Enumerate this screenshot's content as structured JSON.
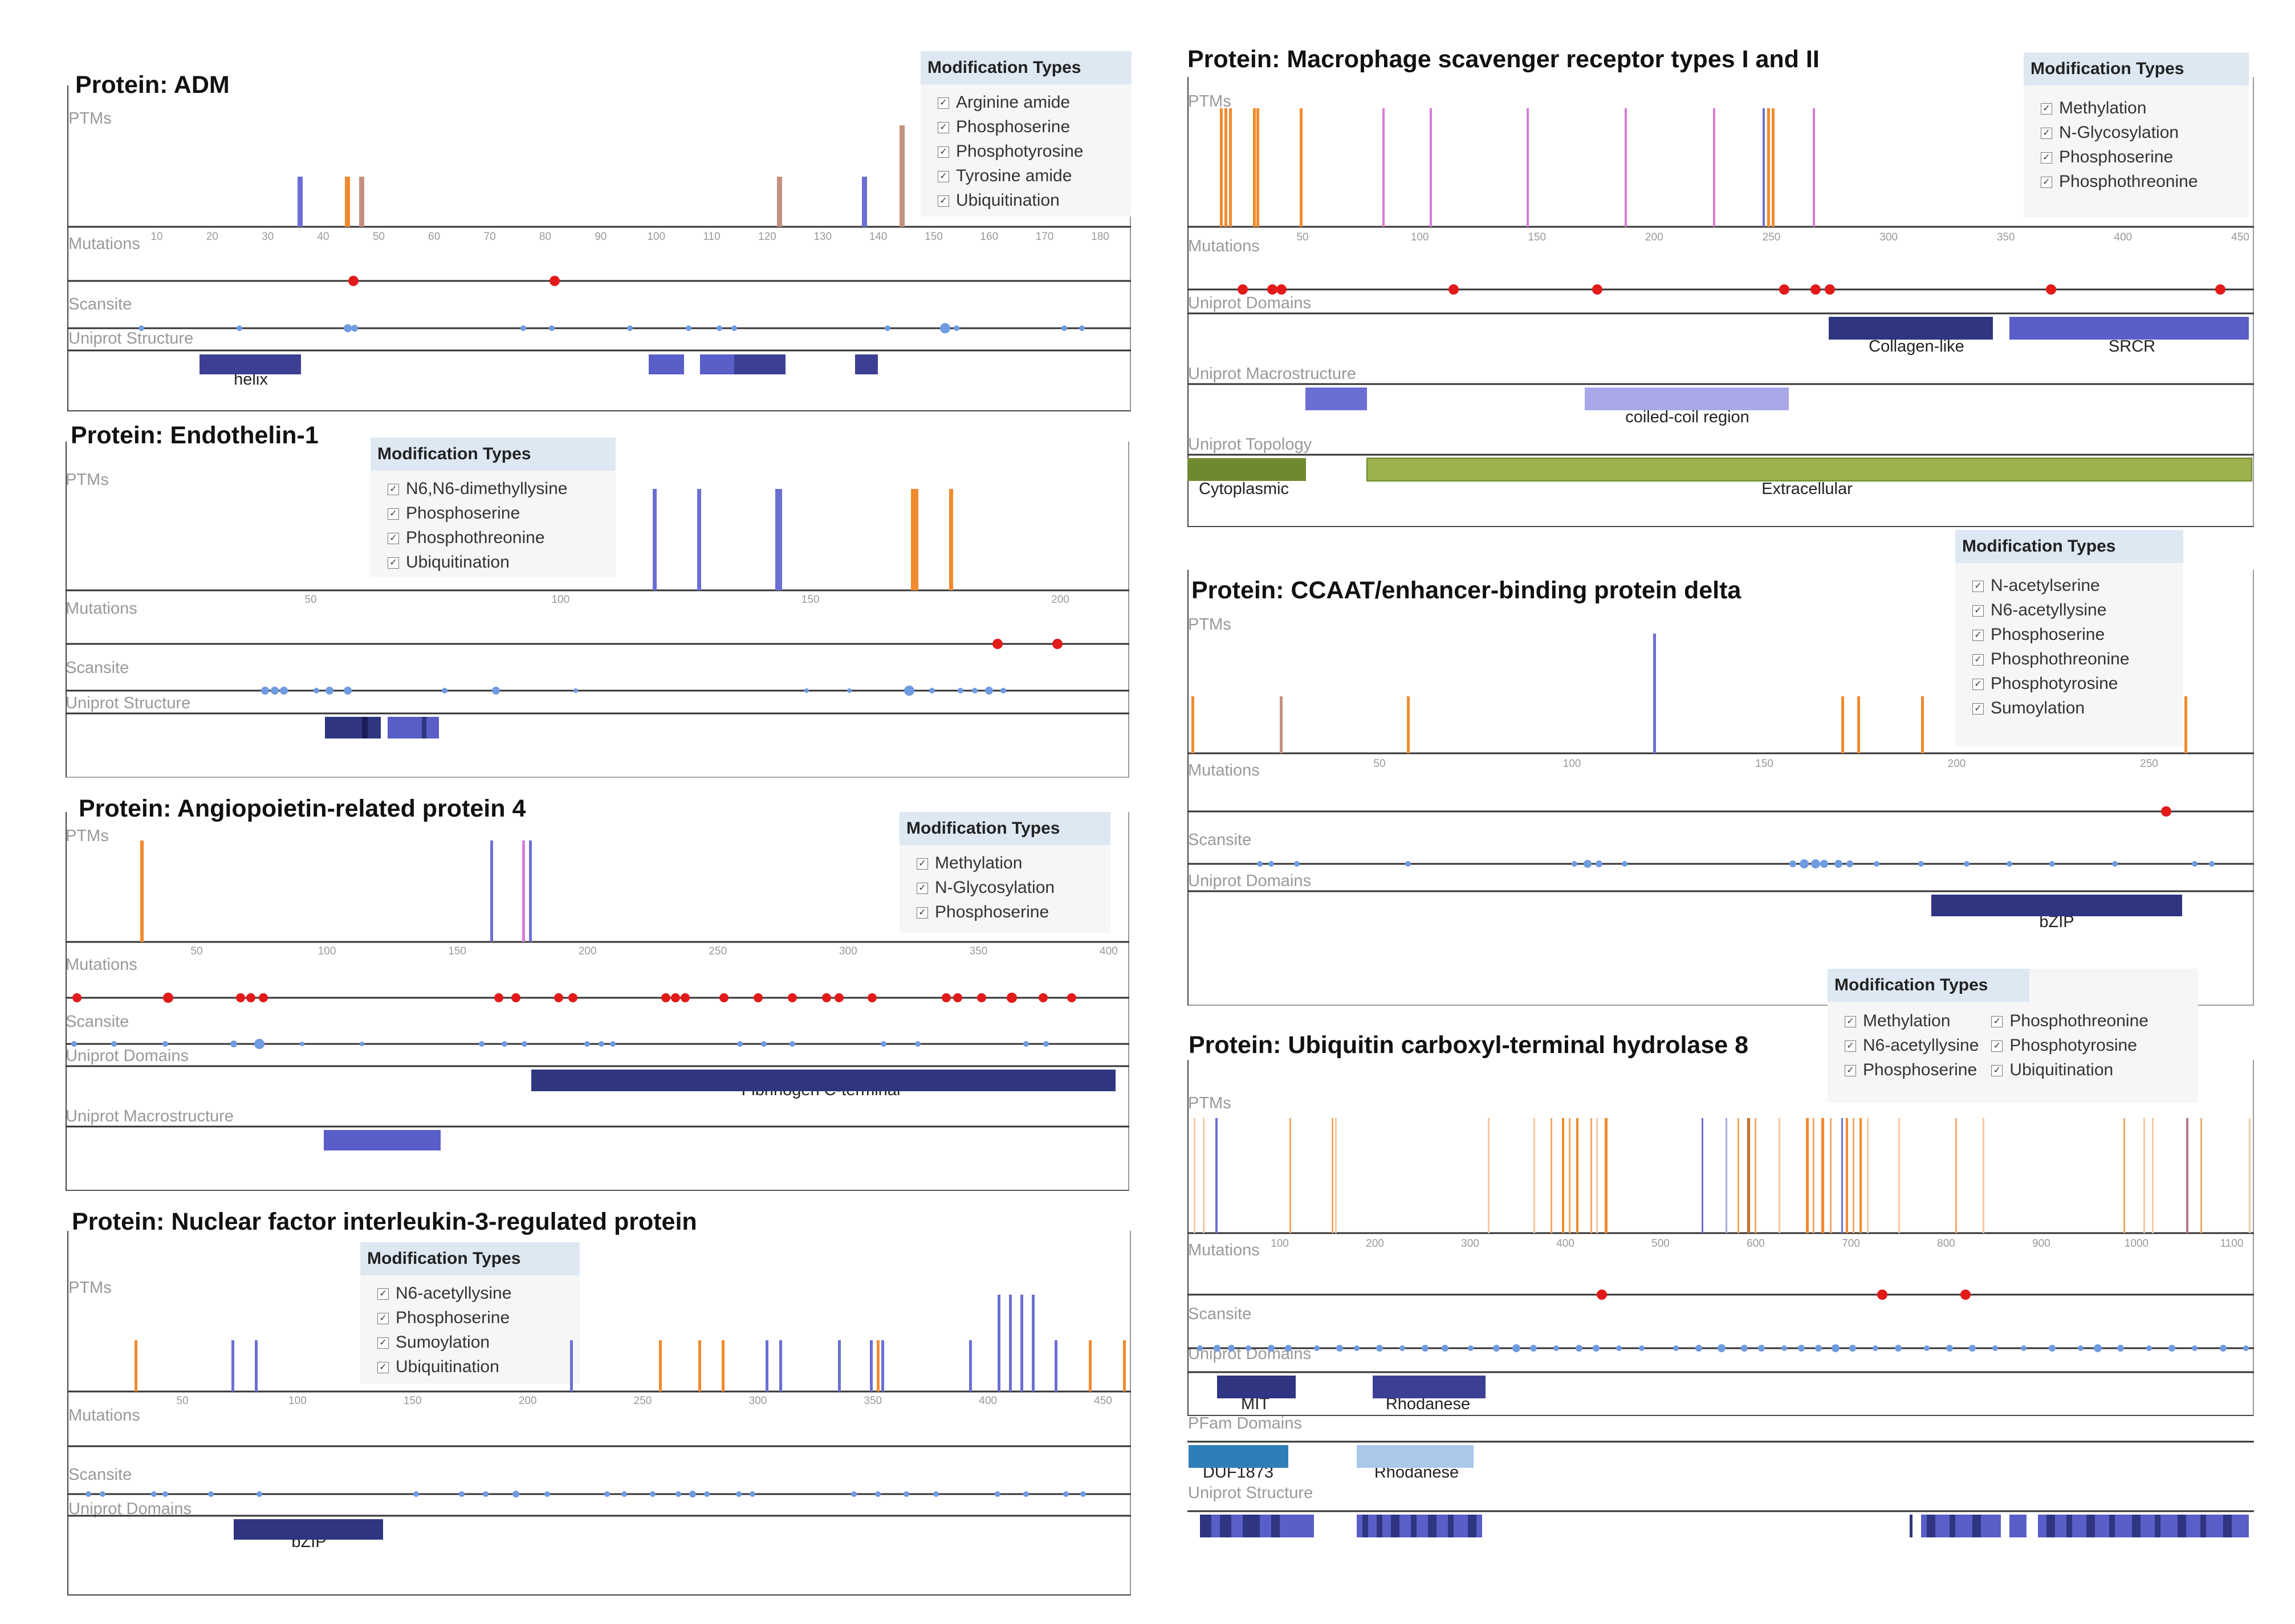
{
  "colors": {
    "orange": "#f28a2e",
    "blue": "#6b6fd4",
    "pink": "#d97ad6",
    "brown": "#c49080",
    "red": "#e21a1a",
    "scansite": "#6f9be0",
    "navy": "#2f3580",
    "domain_blue": "#5a5ec8",
    "lavender": "#a8a8e8",
    "olive": "#6e8a2f",
    "olive_light": "#9cb04e",
    "teal": "#2e7fb8",
    "light_blue": "#a9c8ea"
  },
  "track_labels": {
    "ptms": "PTMs",
    "mutations": "Mutations",
    "scansite": "Scansite",
    "uniprot_structure": "Uniprot Structure",
    "uniprot_domains": "Uniprot Domains",
    "uniprot_macrostructure": "Uniprot Macrostructure",
    "uniprot_topology": "Uniprot Topology",
    "pfam_domains": "PFam Domains"
  },
  "legend_title": "Modification Types",
  "check_mark": "✓",
  "proteins": {
    "adm": {
      "title": "Protein: ADM",
      "mods": [
        "Arginine amide",
        "Phosphoserine",
        "Phosphotyrosine",
        "Tyrosine amide",
        "Ubiquitination"
      ],
      "axis_ticks": [
        "10",
        "20",
        "30",
        "40",
        "50",
        "60",
        "70",
        "80",
        "90",
        "100",
        "110",
        "120",
        "130",
        "140",
        "150",
        "160",
        "170",
        "180"
      ],
      "domain_labels": [
        "helix"
      ]
    },
    "endothelin": {
      "title": "Protein: Endothelin-1",
      "mods": [
        "N6,N6-dimethyllysine",
        "Phosphoserine",
        "Phosphothreonine",
        "Ubiquitination"
      ],
      "axis_ticks": [
        "50",
        "100",
        "150",
        "200"
      ]
    },
    "angptl4": {
      "title": "Protein: Angiopoietin-related protein 4",
      "mods": [
        "Methylation",
        "N-Glycosylation",
        "Phosphoserine"
      ],
      "axis_ticks": [
        "50",
        "100",
        "150",
        "200",
        "250",
        "300",
        "350",
        "400"
      ],
      "domain_labels": [
        "Fibrinogen C-terminal"
      ]
    },
    "nfil3": {
      "title": "Protein: Nuclear factor interleukin-3-regulated protein",
      "mods": [
        "N6-acetyllysine",
        "Phosphoserine",
        "Sumoylation",
        "Ubiquitination"
      ],
      "axis_ticks": [
        "50",
        "100",
        "150",
        "200",
        "250",
        "300",
        "350",
        "400",
        "450"
      ],
      "domain_labels": [
        "bZIP"
      ]
    },
    "msr": {
      "title": "Protein: Macrophage scavenger receptor types I and II",
      "mods": [
        "Methylation",
        "N-Glycosylation",
        "Phosphoserine",
        "Phosphothreonine"
      ],
      "axis_ticks": [
        "50",
        "100",
        "150",
        "200",
        "250",
        "300",
        "350",
        "400",
        "450"
      ],
      "domain_labels": [
        "Collagen-like",
        "SRCR"
      ],
      "macro_labels": [
        "coiled-coil region"
      ],
      "topology_labels": [
        "Cytoplasmic",
        "Extracellular"
      ]
    },
    "cebpd": {
      "title": "Protein: CCAAT/enhancer-binding protein delta",
      "mods": [
        "N-acetylserine",
        "N6-acetyllysine",
        "Phosphoserine",
        "Phosphothreonine",
        "Phosphotyrosine",
        "Sumoylation"
      ],
      "axis_ticks": [
        "50",
        "100",
        "150",
        "200",
        "250"
      ],
      "domain_labels": [
        "bZIP"
      ]
    },
    "usp8": {
      "title": "Protein: Ubiquitin carboxyl-terminal hydrolase 8",
      "mods_col1": [
        "Methylation",
        "N6-acetyllysine",
        "Phosphoserine"
      ],
      "mods_col2": [
        "Phosphothreonine",
        "Phosphotyrosine",
        "Ubiquitination"
      ],
      "axis_ticks": [
        "100",
        "200",
        "300",
        "400",
        "500",
        "600",
        "700",
        "800",
        "900",
        "1000",
        "1100"
      ],
      "domain_labels": [
        "MIT",
        "Rhodanese"
      ],
      "pfam_labels": [
        "DUF1873",
        "Rhodanese"
      ]
    }
  }
}
